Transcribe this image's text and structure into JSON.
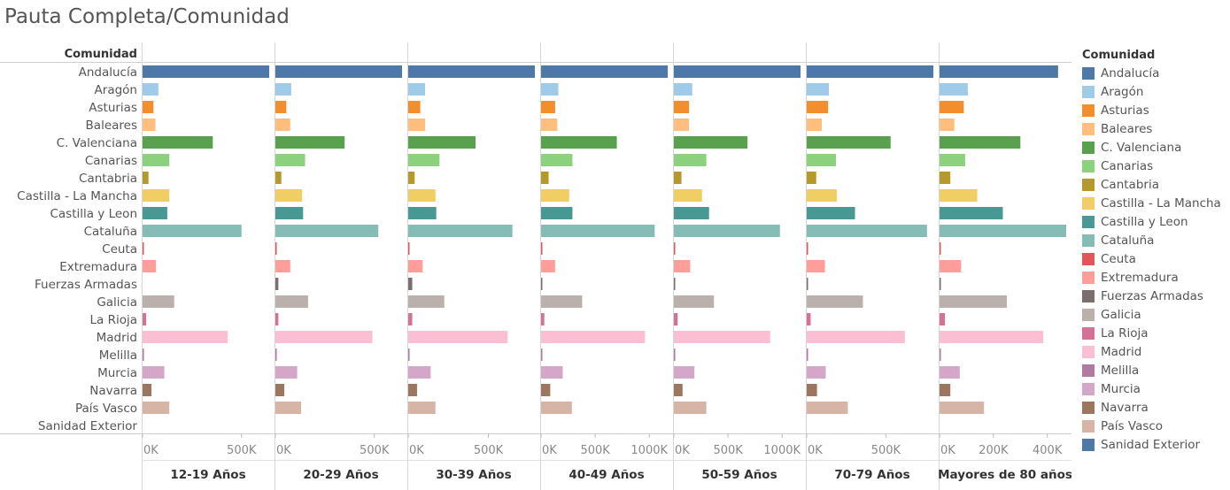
{
  "title": "Pauta Completa/Comunidad",
  "chart_data": {
    "type": "bar",
    "orientation": "horizontal",
    "title": "Pauta Completa/Comunidad",
    "row_header": "Comunidad",
    "categories": [
      "Andalucía",
      "Aragón",
      "Asturias",
      "Baleares",
      "C. Valenciana",
      "Canarias",
      "Cantabria",
      "Castilla - La Mancha",
      "Castilla y Leon",
      "Cataluña",
      "Ceuta",
      "Extremadura",
      "Fuerzas Armadas",
      "Galicia",
      "La Rioja",
      "Madrid",
      "Melilla",
      "Murcia",
      "Navarra",
      "País Vasco",
      "Sanidad Exterior"
    ],
    "colors": [
      "#4e79a7",
      "#a0cbe8",
      "#f28e2b",
      "#ffbe7d",
      "#59a14f",
      "#8cd17d",
      "#b6992d",
      "#f1ce63",
      "#499894",
      "#86bcb6",
      "#e15759",
      "#ff9d9a",
      "#79706e",
      "#bab0ac",
      "#d37295",
      "#fabfd2",
      "#b07aa1",
      "#d4a6c8",
      "#9d7660",
      "#d7b5a6",
      "#4e79a7"
    ],
    "panels": [
      {
        "name": "12-19 Años",
        "axis_max": 640000,
        "ticks": [
          0,
          500000
        ],
        "tick_labels": [
          "0K",
          "500K"
        ],
        "values": [
          640000,
          80000,
          55000,
          65000,
          355000,
          135000,
          30000,
          135000,
          125000,
          500000,
          3000,
          68000,
          0,
          160000,
          18000,
          430000,
          3000,
          110000,
          45000,
          135000,
          0
        ]
      },
      {
        "name": "20-29 Años",
        "axis_max": 640000,
        "ticks": [
          0,
          500000
        ],
        "tick_labels": [
          "0K",
          "500K"
        ],
        "values": [
          640000,
          80000,
          55000,
          75000,
          350000,
          150000,
          30000,
          135000,
          140000,
          520000,
          4000,
          75000,
          15000,
          165000,
          15000,
          490000,
          4000,
          110000,
          45000,
          130000,
          0
        ]
      },
      {
        "name": "30-39 Años",
        "axis_max": 790000,
        "ticks": [
          0,
          500000
        ],
        "tick_labels": [
          "0K",
          "500K"
        ],
        "values": [
          790000,
          105000,
          75000,
          105000,
          420000,
          195000,
          40000,
          170000,
          175000,
          650000,
          4000,
          90000,
          25000,
          225000,
          25000,
          620000,
          4000,
          140000,
          55000,
          170000,
          0
        ]
      },
      {
        "name": "40-49 Años",
        "axis_max": 1170000,
        "ticks": [
          0,
          500000,
          1000000
        ],
        "tick_labels": [
          "0K",
          "500K",
          "1000K"
        ],
        "values": [
          1170000,
          160000,
          130000,
          150000,
          700000,
          290000,
          70000,
          260000,
          290000,
          1050000,
          5000,
          130000,
          5000,
          380000,
          30000,
          960000,
          4000,
          200000,
          85000,
          285000,
          0
        ]
      },
      {
        "name": "50-59 Años",
        "axis_max": 1170000,
        "ticks": [
          0,
          500000,
          1000000
        ],
        "tick_labels": [
          "0K",
          "500K",
          "1000K"
        ],
        "values": [
          1170000,
          170000,
          140000,
          140000,
          680000,
          300000,
          70000,
          260000,
          325000,
          980000,
          5000,
          150000,
          4000,
          370000,
          35000,
          890000,
          4000,
          190000,
          80000,
          300000,
          0
        ]
      },
      {
        "name": "70-79 Años",
        "axis_max": 800000,
        "ticks": [
          0,
          500000
        ],
        "tick_labels": [
          "0K",
          "500K"
        ],
        "values": [
          800000,
          140000,
          135000,
          95000,
          530000,
          185000,
          60000,
          190000,
          305000,
          760000,
          4000,
          115000,
          4000,
          355000,
          25000,
          620000,
          4000,
          120000,
          65000,
          260000,
          0
        ]
      },
      {
        "name": "Mayores de 80 años",
        "axis_max": 470000,
        "ticks": [
          0,
          200000,
          400000
        ],
        "tick_labels": [
          "0K",
          "200K",
          "400K"
        ],
        "values": [
          440000,
          105000,
          90000,
          55000,
          300000,
          95000,
          40000,
          140000,
          235000,
          470000,
          3000,
          80000,
          3000,
          250000,
          20000,
          385000,
          3000,
          75000,
          40000,
          165000,
          0
        ]
      }
    ],
    "legend_title": "Comunidad",
    "legend_position": "right",
    "grid": false
  }
}
